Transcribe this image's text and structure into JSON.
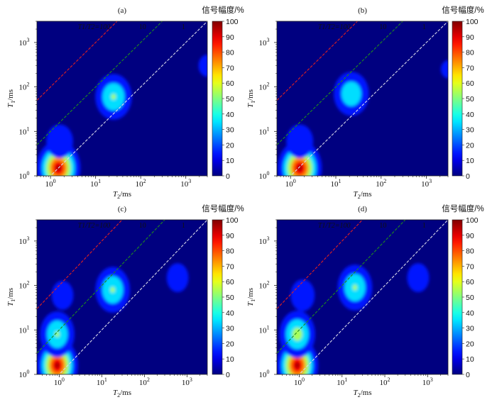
{
  "chart_data": [
    {
      "type": "heatmap",
      "panel": "(a)",
      "xlabel": "T2/ms",
      "ylabel": "T1/ms",
      "x_scale": "log",
      "y_scale": "log",
      "xlim": [
        0.5,
        3000
      ],
      "ylim": [
        1,
        3000
      ],
      "x_ticks": [
        "10^0",
        "10^1",
        "10^2",
        "10^3"
      ],
      "y_ticks": [
        "10^0",
        "10^1",
        "10^2",
        "10^3"
      ],
      "ratio_lines": [
        {
          "label": "T1/T2=100",
          "ratio": 100,
          "color": "#e02020"
        },
        {
          "label": "10",
          "ratio": 10,
          "color": "#1f8a1f"
        },
        {
          "label": "1",
          "ratio": 1,
          "color": "#d8d8e8"
        }
      ],
      "colorbar": {
        "title": "信号幅度/%",
        "range": [
          0,
          100
        ],
        "ticks": [
          0,
          10,
          20,
          30,
          40,
          50,
          60,
          70,
          80,
          90,
          100
        ]
      },
      "peaks": [
        {
          "t2": 1.5,
          "t1": 1.5,
          "amplitude": 100
        },
        {
          "t2": 1.6,
          "t1": 6,
          "amplitude": 30
        },
        {
          "t2": 25,
          "t1": 60,
          "amplitude": 55
        },
        {
          "t2": 3000,
          "t1": 300,
          "amplitude": 20
        }
      ]
    },
    {
      "type": "heatmap",
      "panel": "(b)",
      "xlabel": "T2/ms",
      "ylabel": "T1/ms",
      "x_scale": "log",
      "y_scale": "log",
      "xlim": [
        0.5,
        3000
      ],
      "ylim": [
        1,
        3000
      ],
      "x_ticks": [
        "10^0",
        "10^1",
        "10^2",
        "10^3"
      ],
      "y_ticks": [
        "10^0",
        "10^1",
        "10^2",
        "10^3"
      ],
      "ratio_lines": [
        {
          "label": "T1/T2=100",
          "ratio": 100,
          "color": "#e02020"
        },
        {
          "label": "10",
          "ratio": 10,
          "color": "#1f8a1f"
        },
        {
          "label": "1",
          "ratio": 1,
          "color": "#d8d8e8"
        }
      ],
      "colorbar": {
        "title": "信号幅度/%",
        "range": [
          0,
          100
        ],
        "ticks": [
          0,
          10,
          20,
          30,
          40,
          50,
          60,
          70,
          80,
          90,
          100
        ]
      },
      "peaks": [
        {
          "t2": 1.6,
          "t1": 1.5,
          "amplitude": 100
        },
        {
          "t2": 1.6,
          "t1": 6,
          "amplitude": 30
        },
        {
          "t2": 22,
          "t1": 70,
          "amplitude": 50
        },
        {
          "t2": 3000,
          "t1": 250,
          "amplitude": 18
        }
      ]
    },
    {
      "type": "heatmap",
      "panel": "(c)",
      "xlabel": "T2/ms",
      "ylabel": "T1/ms",
      "x_scale": "log",
      "y_scale": "log",
      "xlim": [
        0.3,
        3000
      ],
      "ylim": [
        1,
        3000
      ],
      "x_ticks": [
        "10^0",
        "10^1",
        "10^2",
        "10^3"
      ],
      "y_ticks": [
        "10^0",
        "10^1",
        "10^2",
        "10^3"
      ],
      "ratio_lines": [
        {
          "label": "T1/T2=100",
          "ratio": 100,
          "color": "#e02020"
        },
        {
          "label": "10",
          "ratio": 10,
          "color": "#1f8a1f"
        },
        {
          "label": "1",
          "ratio": 1,
          "color": "#d8d8e8"
        }
      ],
      "colorbar": {
        "title": "信号幅度/%",
        "range": [
          0,
          100
        ],
        "ticks": [
          0,
          10,
          20,
          30,
          40,
          50,
          60,
          70,
          80,
          90,
          100
        ]
      },
      "peaks": [
        {
          "t2": 0.9,
          "t1": 1.6,
          "amplitude": 100
        },
        {
          "t2": 0.9,
          "t1": 8,
          "amplitude": 55
        },
        {
          "t2": 1.2,
          "t1": 60,
          "amplitude": 25
        },
        {
          "t2": 18,
          "t1": 80,
          "amplitude": 55
        },
        {
          "t2": 600,
          "t1": 150,
          "amplitude": 25
        }
      ]
    },
    {
      "type": "heatmap",
      "panel": "(d)",
      "xlabel": "T2/ms",
      "ylabel": "T1/ms",
      "x_scale": "log",
      "y_scale": "log",
      "xlim": [
        0.3,
        3000
      ],
      "ylim": [
        1,
        3000
      ],
      "x_ticks": [
        "10^0",
        "10^1",
        "10^2",
        "10^3"
      ],
      "y_ticks": [
        "10^0",
        "10^1",
        "10^2",
        "10^3"
      ],
      "ratio_lines": [
        {
          "label": "T1/T2=100",
          "ratio": 100,
          "color": "#e02020"
        },
        {
          "label": "10",
          "ratio": 10,
          "color": "#1f8a1f"
        },
        {
          "label": "1",
          "ratio": 1,
          "color": "#d8d8e8"
        }
      ],
      "colorbar": {
        "title": "信号幅度/%",
        "range": [
          0,
          100
        ],
        "ticks": [
          0,
          10,
          20,
          30,
          40,
          50,
          60,
          70,
          80,
          90,
          100
        ]
      },
      "peaks": [
        {
          "t2": 0.9,
          "t1": 1.6,
          "amplitude": 100
        },
        {
          "t2": 0.9,
          "t1": 8,
          "amplitude": 60
        },
        {
          "t2": 1.2,
          "t1": 60,
          "amplitude": 28
        },
        {
          "t2": 20,
          "t1": 90,
          "amplitude": 55
        },
        {
          "t2": 600,
          "t1": 150,
          "amplitude": 25
        }
      ]
    }
  ]
}
